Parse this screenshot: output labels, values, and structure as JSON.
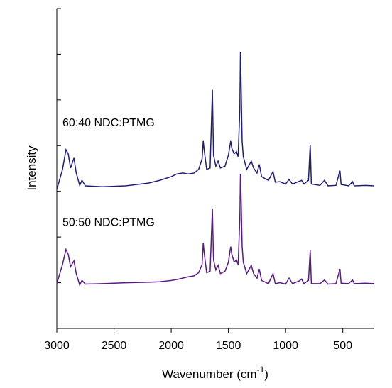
{
  "chart_data": {
    "type": "line",
    "xlabel": [
      "Wavenumber (cm",
      "-1",
      ")"
    ],
    "ylabel": "Intensity",
    "xlim": [
      3000,
      225
    ],
    "ylim": [
      0,
      7
    ],
    "xticks": [
      3000,
      2500,
      2000,
      1500,
      1000,
      500
    ],
    "yticks": [
      0,
      1,
      2,
      3,
      4,
      5,
      6,
      7
    ],
    "x": [
      3000,
      2950,
      2920,
      2900,
      2880,
      2850,
      2830,
      2800,
      2780,
      2750,
      2600,
      2400,
      2200,
      2100,
      2000,
      1950,
      1900,
      1850,
      1800,
      1760,
      1730,
      1720,
      1710,
      1690,
      1660,
      1640,
      1630,
      1610,
      1590,
      1570,
      1530,
      1500,
      1480,
      1470,
      1450,
      1430,
      1415,
      1400,
      1395,
      1390,
      1380,
      1370,
      1340,
      1300,
      1280,
      1250,
      1230,
      1210,
      1150,
      1110,
      1090,
      1050,
      1000,
      970,
      940,
      880,
      860,
      840,
      800,
      785,
      775,
      700,
      660,
      630,
      560,
      525,
      515,
      450,
      415,
      400,
      300,
      225
    ],
    "series": [
      {
        "name": "60:40 NDC:PTMG",
        "color": "#1f1f7a",
        "values": [
          3.04,
          3.48,
          3.91,
          3.82,
          3.51,
          3.73,
          3.4,
          3.13,
          3.24,
          3.12,
          3.1,
          3.12,
          3.18,
          3.24,
          3.32,
          3.38,
          3.4,
          3.38,
          3.4,
          3.48,
          3.71,
          4.1,
          3.87,
          3.48,
          3.51,
          5.22,
          3.79,
          3.55,
          3.66,
          3.51,
          3.55,
          3.79,
          4.1,
          3.94,
          3.82,
          3.87,
          3.76,
          4.8,
          6.05,
          5.51,
          4.1,
          3.76,
          3.48,
          3.66,
          3.51,
          3.4,
          3.59,
          3.32,
          3.24,
          3.43,
          3.2,
          3.21,
          3.16,
          3.26,
          3.16,
          3.22,
          3.24,
          3.16,
          3.24,
          4.02,
          3.16,
          3.13,
          3.24,
          3.12,
          3.13,
          3.45,
          3.15,
          3.12,
          3.21,
          3.12,
          3.13,
          3.12
        ]
      },
      {
        "name": "50:50 NDC:PTMG",
        "color": "#5a1a8a",
        "values": [
          0.98,
          1.4,
          1.73,
          1.62,
          1.35,
          1.48,
          1.2,
          0.95,
          1.05,
          0.97,
          0.98,
          1.0,
          1.01,
          1.02,
          1.05,
          1.07,
          1.1,
          1.13,
          1.15,
          1.22,
          1.4,
          1.87,
          1.62,
          1.22,
          1.25,
          2.62,
          1.5,
          1.28,
          1.38,
          1.2,
          1.25,
          1.45,
          1.79,
          1.62,
          1.45,
          1.5,
          1.4,
          2.4,
          3.38,
          3.0,
          1.8,
          1.45,
          1.2,
          1.38,
          1.2,
          1.1,
          1.3,
          1.05,
          0.98,
          1.2,
          0.98,
          1.0,
          0.97,
          1.1,
          0.98,
          1.04,
          1.08,
          0.98,
          1.05,
          1.71,
          0.98,
          0.98,
          1.06,
          0.97,
          0.98,
          1.3,
          0.99,
          0.98,
          1.06,
          0.98,
          0.99,
          0.98
        ]
      }
    ]
  }
}
